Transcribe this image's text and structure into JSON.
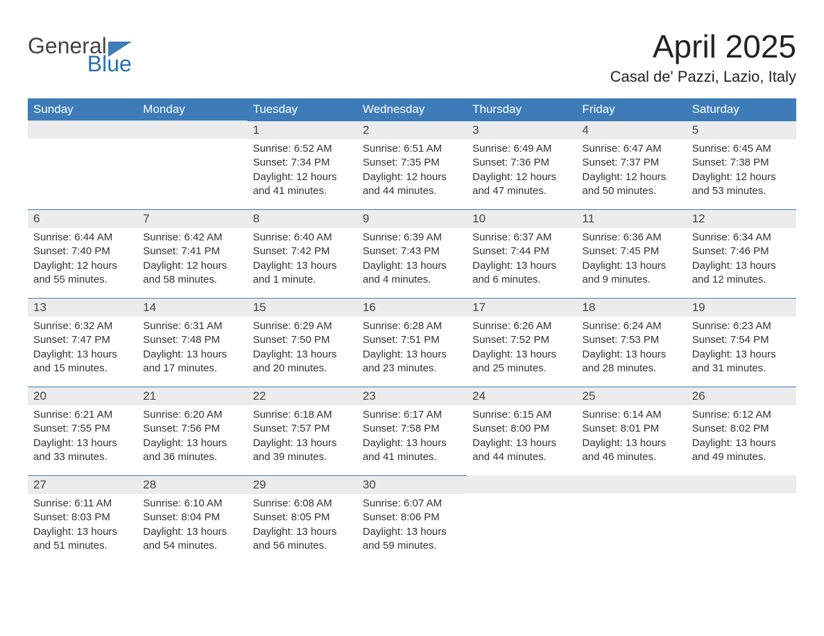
{
  "logo": {
    "text1": "General",
    "text2": "Blue",
    "general_color": "#444444",
    "blue_color": "#2a6fb5",
    "flag_color": "#3e7cb9"
  },
  "header": {
    "month_title": "April 2025",
    "location": "Casal de' Pazzi, Lazio, Italy"
  },
  "styling": {
    "background_color": "#ffffff",
    "header_bg": "#3e7cb9",
    "header_text_color": "#ffffff",
    "daynum_bg": "#ececec",
    "daynum_border_top": "#3e7cb9",
    "body_text_color": "#333333",
    "month_title_fontsize": 46,
    "location_fontsize": 22,
    "dayname_fontsize": 17,
    "daynum_fontsize": 17,
    "content_fontsize": 15
  },
  "day_names": [
    "Sunday",
    "Monday",
    "Tuesday",
    "Wednesday",
    "Thursday",
    "Friday",
    "Saturday"
  ],
  "weeks": [
    [
      {
        "day": "",
        "sunrise": "",
        "sunset": "",
        "daylight1": "",
        "daylight2": "",
        "empty": true
      },
      {
        "day": "",
        "sunrise": "",
        "sunset": "",
        "daylight1": "",
        "daylight2": "",
        "empty": true
      },
      {
        "day": "1",
        "sunrise": "Sunrise: 6:52 AM",
        "sunset": "Sunset: 7:34 PM",
        "daylight1": "Daylight: 12 hours",
        "daylight2": "and 41 minutes."
      },
      {
        "day": "2",
        "sunrise": "Sunrise: 6:51 AM",
        "sunset": "Sunset: 7:35 PM",
        "daylight1": "Daylight: 12 hours",
        "daylight2": "and 44 minutes."
      },
      {
        "day": "3",
        "sunrise": "Sunrise: 6:49 AM",
        "sunset": "Sunset: 7:36 PM",
        "daylight1": "Daylight: 12 hours",
        "daylight2": "and 47 minutes."
      },
      {
        "day": "4",
        "sunrise": "Sunrise: 6:47 AM",
        "sunset": "Sunset: 7:37 PM",
        "daylight1": "Daylight: 12 hours",
        "daylight2": "and 50 minutes."
      },
      {
        "day": "5",
        "sunrise": "Sunrise: 6:45 AM",
        "sunset": "Sunset: 7:38 PM",
        "daylight1": "Daylight: 12 hours",
        "daylight2": "and 53 minutes."
      }
    ],
    [
      {
        "day": "6",
        "sunrise": "Sunrise: 6:44 AM",
        "sunset": "Sunset: 7:40 PM",
        "daylight1": "Daylight: 12 hours",
        "daylight2": "and 55 minutes."
      },
      {
        "day": "7",
        "sunrise": "Sunrise: 6:42 AM",
        "sunset": "Sunset: 7:41 PM",
        "daylight1": "Daylight: 12 hours",
        "daylight2": "and 58 minutes."
      },
      {
        "day": "8",
        "sunrise": "Sunrise: 6:40 AM",
        "sunset": "Sunset: 7:42 PM",
        "daylight1": "Daylight: 13 hours",
        "daylight2": "and 1 minute."
      },
      {
        "day": "9",
        "sunrise": "Sunrise: 6:39 AM",
        "sunset": "Sunset: 7:43 PM",
        "daylight1": "Daylight: 13 hours",
        "daylight2": "and 4 minutes."
      },
      {
        "day": "10",
        "sunrise": "Sunrise: 6:37 AM",
        "sunset": "Sunset: 7:44 PM",
        "daylight1": "Daylight: 13 hours",
        "daylight2": "and 6 minutes."
      },
      {
        "day": "11",
        "sunrise": "Sunrise: 6:36 AM",
        "sunset": "Sunset: 7:45 PM",
        "daylight1": "Daylight: 13 hours",
        "daylight2": "and 9 minutes."
      },
      {
        "day": "12",
        "sunrise": "Sunrise: 6:34 AM",
        "sunset": "Sunset: 7:46 PM",
        "daylight1": "Daylight: 13 hours",
        "daylight2": "and 12 minutes."
      }
    ],
    [
      {
        "day": "13",
        "sunrise": "Sunrise: 6:32 AM",
        "sunset": "Sunset: 7:47 PM",
        "daylight1": "Daylight: 13 hours",
        "daylight2": "and 15 minutes."
      },
      {
        "day": "14",
        "sunrise": "Sunrise: 6:31 AM",
        "sunset": "Sunset: 7:48 PM",
        "daylight1": "Daylight: 13 hours",
        "daylight2": "and 17 minutes."
      },
      {
        "day": "15",
        "sunrise": "Sunrise: 6:29 AM",
        "sunset": "Sunset: 7:50 PM",
        "daylight1": "Daylight: 13 hours",
        "daylight2": "and 20 minutes."
      },
      {
        "day": "16",
        "sunrise": "Sunrise: 6:28 AM",
        "sunset": "Sunset: 7:51 PM",
        "daylight1": "Daylight: 13 hours",
        "daylight2": "and 23 minutes."
      },
      {
        "day": "17",
        "sunrise": "Sunrise: 6:26 AM",
        "sunset": "Sunset: 7:52 PM",
        "daylight1": "Daylight: 13 hours",
        "daylight2": "and 25 minutes."
      },
      {
        "day": "18",
        "sunrise": "Sunrise: 6:24 AM",
        "sunset": "Sunset: 7:53 PM",
        "daylight1": "Daylight: 13 hours",
        "daylight2": "and 28 minutes."
      },
      {
        "day": "19",
        "sunrise": "Sunrise: 6:23 AM",
        "sunset": "Sunset: 7:54 PM",
        "daylight1": "Daylight: 13 hours",
        "daylight2": "and 31 minutes."
      }
    ],
    [
      {
        "day": "20",
        "sunrise": "Sunrise: 6:21 AM",
        "sunset": "Sunset: 7:55 PM",
        "daylight1": "Daylight: 13 hours",
        "daylight2": "and 33 minutes."
      },
      {
        "day": "21",
        "sunrise": "Sunrise: 6:20 AM",
        "sunset": "Sunset: 7:56 PM",
        "daylight1": "Daylight: 13 hours",
        "daylight2": "and 36 minutes."
      },
      {
        "day": "22",
        "sunrise": "Sunrise: 6:18 AM",
        "sunset": "Sunset: 7:57 PM",
        "daylight1": "Daylight: 13 hours",
        "daylight2": "and 39 minutes."
      },
      {
        "day": "23",
        "sunrise": "Sunrise: 6:17 AM",
        "sunset": "Sunset: 7:58 PM",
        "daylight1": "Daylight: 13 hours",
        "daylight2": "and 41 minutes."
      },
      {
        "day": "24",
        "sunrise": "Sunrise: 6:15 AM",
        "sunset": "Sunset: 8:00 PM",
        "daylight1": "Daylight: 13 hours",
        "daylight2": "and 44 minutes."
      },
      {
        "day": "25",
        "sunrise": "Sunrise: 6:14 AM",
        "sunset": "Sunset: 8:01 PM",
        "daylight1": "Daylight: 13 hours",
        "daylight2": "and 46 minutes."
      },
      {
        "day": "26",
        "sunrise": "Sunrise: 6:12 AM",
        "sunset": "Sunset: 8:02 PM",
        "daylight1": "Daylight: 13 hours",
        "daylight2": "and 49 minutes."
      }
    ],
    [
      {
        "day": "27",
        "sunrise": "Sunrise: 6:11 AM",
        "sunset": "Sunset: 8:03 PM",
        "daylight1": "Daylight: 13 hours",
        "daylight2": "and 51 minutes."
      },
      {
        "day": "28",
        "sunrise": "Sunrise: 6:10 AM",
        "sunset": "Sunset: 8:04 PM",
        "daylight1": "Daylight: 13 hours",
        "daylight2": "and 54 minutes."
      },
      {
        "day": "29",
        "sunrise": "Sunrise: 6:08 AM",
        "sunset": "Sunset: 8:05 PM",
        "daylight1": "Daylight: 13 hours",
        "daylight2": "and 56 minutes."
      },
      {
        "day": "30",
        "sunrise": "Sunrise: 6:07 AM",
        "sunset": "Sunset: 8:06 PM",
        "daylight1": "Daylight: 13 hours",
        "daylight2": "and 59 minutes."
      },
      {
        "day": "",
        "sunrise": "",
        "sunset": "",
        "daylight1": "",
        "daylight2": "",
        "empty": true
      },
      {
        "day": "",
        "sunrise": "",
        "sunset": "",
        "daylight1": "",
        "daylight2": "",
        "empty": true
      },
      {
        "day": "",
        "sunrise": "",
        "sunset": "",
        "daylight1": "",
        "daylight2": "",
        "empty": true
      }
    ]
  ]
}
